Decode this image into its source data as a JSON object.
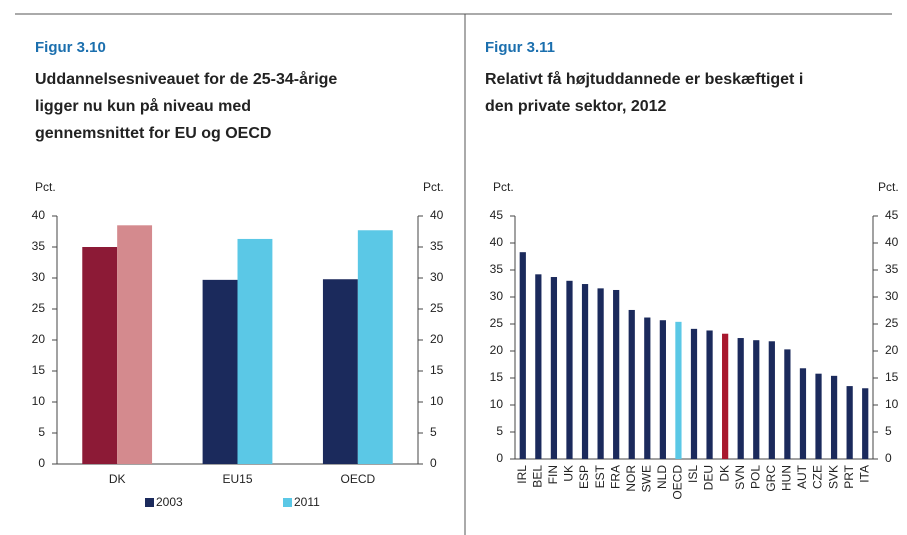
{
  "chart_data": [
    {
      "type": "bar",
      "label": "Figur 3.10",
      "title": [
        "Uddannelsesniveauet for de 25-34-årige",
        "ligger nu kun på niveau med",
        "gennemsnittet for EU og OECD"
      ],
      "ylabel": "Pct.",
      "y2label": "Pct.",
      "categories": [
        "DK",
        "EU15",
        "OECD"
      ],
      "series": [
        {
          "name": "2003",
          "color": "#1b2a5c",
          "point_colors": [
            "#8c1a36",
            "#1b2a5c",
            "#1b2a5c"
          ],
          "values": [
            35,
            29.7,
            29.8
          ]
        },
        {
          "name": "2011",
          "color": "#5bc8e6",
          "point_colors": [
            "#d48a8e",
            "#5bc8e6",
            "#5bc8e6"
          ],
          "values": [
            38.5,
            36.3,
            37.7
          ]
        }
      ],
      "ylim": [
        0,
        40
      ],
      "yticks": [
        0,
        5,
        10,
        15,
        20,
        25,
        30,
        35,
        40
      ],
      "y2lim": [
        0,
        40
      ],
      "y2ticks": [
        0,
        5,
        10,
        15,
        20,
        25,
        30,
        35,
        40
      ],
      "legend": "bottom"
    },
    {
      "type": "bar",
      "label": "Figur 3.11",
      "title": [
        "Relativt få højtuddannede er beskæftiget i",
        "den private sektor, 2012"
      ],
      "ylabel": "Pct.",
      "y2label": "Pct.",
      "categories": [
        "IRL",
        "BEL",
        "FIN",
        "UK",
        "ESP",
        "EST",
        "FRA",
        "NOR",
        "SWE",
        "NLD",
        "OECD",
        "ISL",
        "DEU",
        "DK",
        "SVN",
        "POL",
        "GRC",
        "HUN",
        "AUT",
        "CZE",
        "SVK",
        "PRT",
        "ITA"
      ],
      "series": [
        {
          "color": "#1b2a5c",
          "point_colors": [
            "#1b2a5c",
            "#1b2a5c",
            "#1b2a5c",
            "#1b2a5c",
            "#1b2a5c",
            "#1b2a5c",
            "#1b2a5c",
            "#1b2a5c",
            "#1b2a5c",
            "#1b2a5c",
            "#5bc8e6",
            "#1b2a5c",
            "#1b2a5c",
            "#a8182e",
            "#1b2a5c",
            "#1b2a5c",
            "#1b2a5c",
            "#1b2a5c",
            "#1b2a5c",
            "#1b2a5c",
            "#1b2a5c",
            "#1b2a5c",
            "#1b2a5c"
          ],
          "values": [
            38.3,
            34.2,
            33.7,
            33,
            32.4,
            31.6,
            31.3,
            27.6,
            26.2,
            25.7,
            25.4,
            24.1,
            23.8,
            23.2,
            22.4,
            22,
            21.8,
            20.3,
            16.8,
            15.8,
            15.4,
            13.5,
            13.1
          ]
        }
      ],
      "ylim": [
        0,
        45
      ],
      "yticks": [
        0,
        5,
        10,
        15,
        20,
        25,
        30,
        35,
        40,
        45
      ],
      "y2lim": [
        0,
        45
      ],
      "y2ticks": [
        0,
        5,
        10,
        15,
        20,
        25,
        30,
        35,
        40,
        45
      ],
      "rotate_labels": true
    }
  ]
}
